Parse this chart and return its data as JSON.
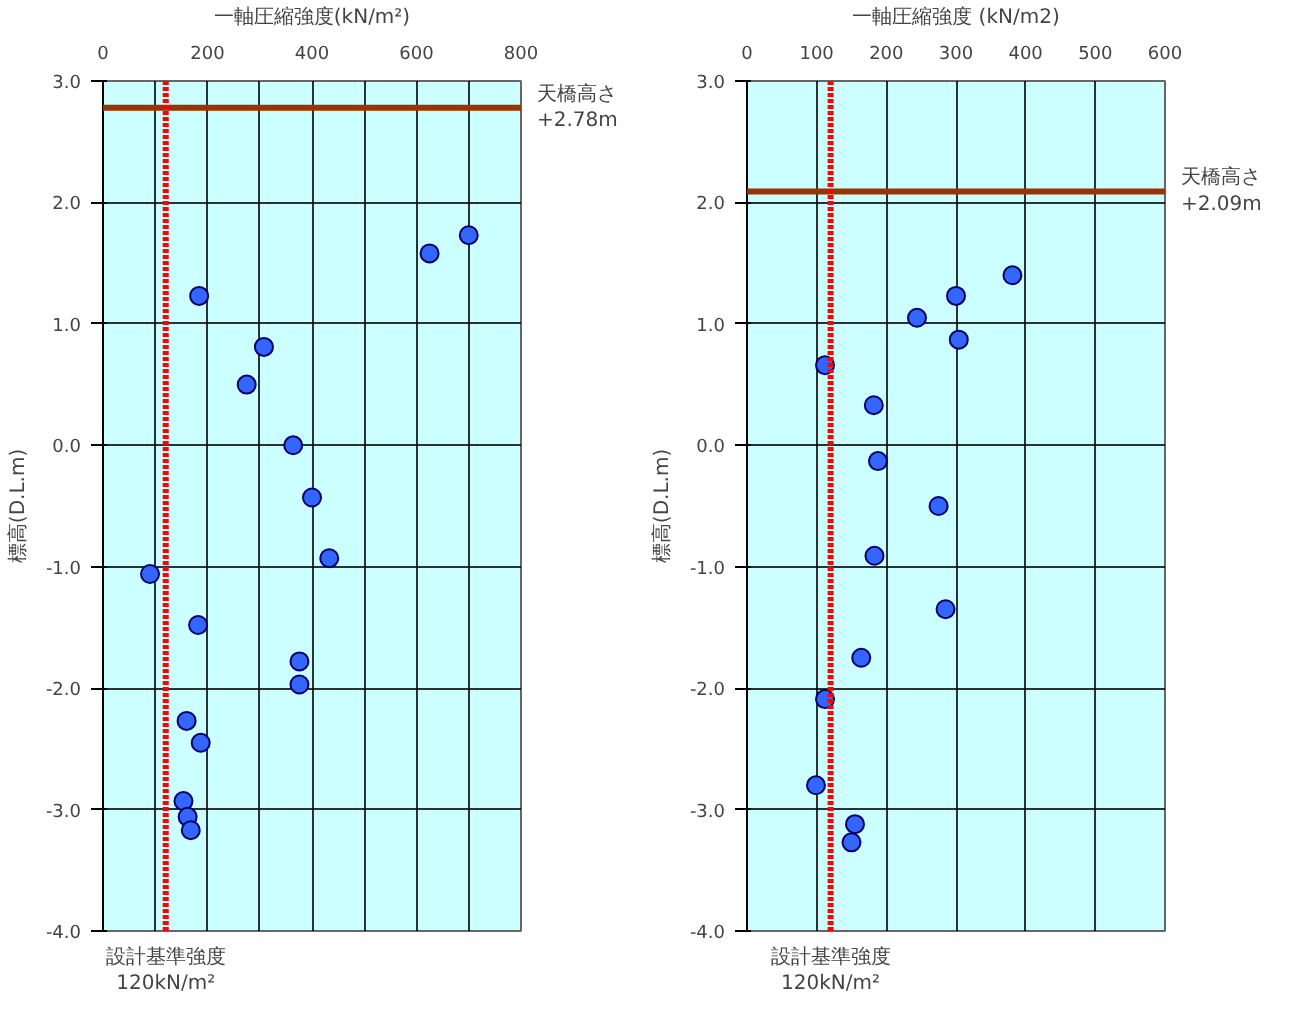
{
  "chart_data": [
    {
      "type": "scatter",
      "xlabel": "一軸圧縮強度(kN/m²)",
      "ylabel": "標高(D.L.m)",
      "xlim": [
        0,
        800
      ],
      "ylim": [
        -4,
        3
      ],
      "xticks": [
        0,
        {
          "value": 100,
          "label": null
        },
        200,
        {
          "value": 300,
          "label": null
        },
        400,
        {
          "value": 500,
          "label": null
        },
        600,
        {
          "value": 700,
          "label": null
        },
        800
      ],
      "yticks": [
        {
          "value": -4,
          "label": "-4.0"
        },
        {
          "value": -3,
          "label": "-3.0"
        },
        {
          "value": -2,
          "label": "-2.0"
        },
        {
          "value": -1,
          "label": "-1.0"
        },
        {
          "value": 0,
          "label": "0.0"
        },
        {
          "value": 1,
          "label": "1.0"
        },
        {
          "value": 2,
          "label": "2.0"
        },
        {
          "value": 3,
          "label": "3.0"
        }
      ],
      "grid": true,
      "marker": "circle",
      "series": [
        {
          "color": "#3366ff",
          "x": [
            184,
            275,
            308,
            364,
            625,
            700,
            400,
            433,
            90,
            182,
            376,
            376,
            160,
            187,
            154,
            162,
            168
          ],
          "values": [
            1.23,
            0.5,
            0.81,
            0.0,
            1.58,
            1.73,
            -0.43,
            -0.93,
            -1.06,
            -1.48,
            -1.78,
            -1.97,
            -2.27,
            -2.45,
            -2.93,
            -3.06,
            -3.17
          ]
        }
      ],
      "ref_lines": [
        {
          "axis": "y",
          "value": 2.78,
          "label": "天橋高さ\n+2.78m",
          "color": "#993300",
          "line_style": "solid"
        },
        {
          "axis": "x",
          "value": 120,
          "label": "設計基準強度\n120kN/m²",
          "color": "#ff0000",
          "line_style": "dotted"
        }
      ]
    },
    {
      "type": "scatter",
      "xlabel": "一軸圧縮強度 (kN/m2)",
      "ylabel": "標高(D.L.m)",
      "xlim": [
        0,
        600
      ],
      "ylim": [
        -4,
        3
      ],
      "xticks": [
        0,
        100,
        200,
        300,
        400,
        500,
        600
      ],
      "yticks": [
        {
          "value": -4,
          "label": "-4.0"
        },
        {
          "value": -3,
          "label": "-3.0"
        },
        {
          "value": -2,
          "label": "-2.0"
        },
        {
          "value": -1,
          "label": "-1.0"
        },
        {
          "value": 0,
          "label": "0.0"
        },
        {
          "value": 1,
          "label": "1.0"
        },
        {
          "value": 2,
          "label": "2.0"
        },
        {
          "value": 3,
          "label": "3.0"
        }
      ],
      "grid": true,
      "marker": "circle",
      "series": [
        {
          "color": "#3366ff",
          "x": [
            112,
            182,
            188,
            244,
            300,
            304,
            381,
            275,
            183,
            285,
            164,
            112,
            99,
            155,
            150
          ],
          "values": [
            0.66,
            0.33,
            -0.13,
            1.05,
            1.23,
            0.87,
            1.4,
            -0.5,
            -0.91,
            -1.35,
            -1.75,
            -2.09,
            -2.8,
            -3.12,
            -3.27
          ]
        }
      ],
      "ref_lines": [
        {
          "axis": "y",
          "value": 2.09,
          "label": "天橋高さ\n+2.09m",
          "color": "#993300",
          "line_style": "solid"
        },
        {
          "axis": "x",
          "value": 120,
          "label": "設計基準強度\n120kN/m²",
          "color": "#ff0000",
          "line_style": "dotted"
        }
      ]
    }
  ]
}
